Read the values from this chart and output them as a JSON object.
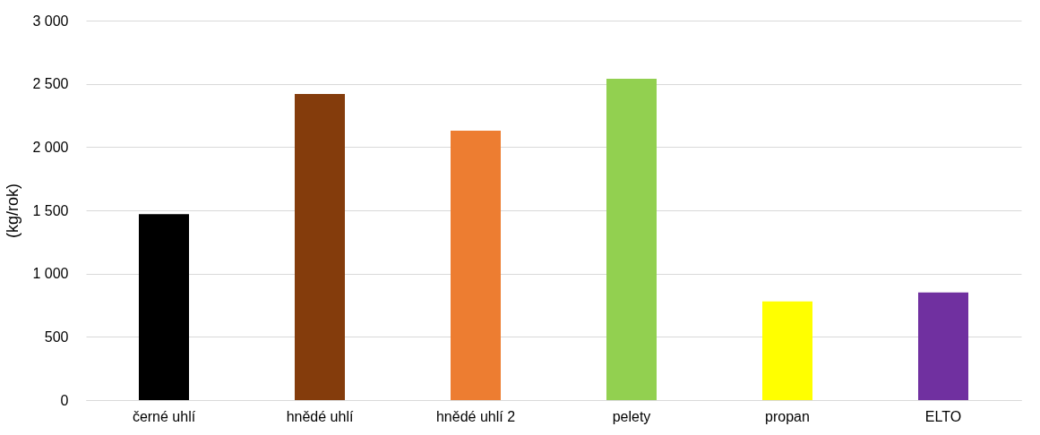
{
  "chart_data": {
    "type": "bar",
    "ylabel": "(kg/rok)",
    "categories": [
      "černé uhlí",
      "hnědé uhlí",
      "hnědé uhlí 2",
      "pelety",
      "propan",
      "ELTO"
    ],
    "values": [
      1470,
      2420,
      2130,
      2540,
      780,
      850
    ],
    "colors": [
      "#000000",
      "#843c0c",
      "#ed7d31",
      "#92d050",
      "#ffff00",
      "#7030a0"
    ],
    "ylim": [
      0,
      3000
    ],
    "yticks": [
      0,
      500,
      {
        "value": 1000,
        "label": "1 000"
      },
      {
        "value": 1500,
        "label": "1 500"
      },
      {
        "value": 2000,
        "label": "2 000"
      },
      {
        "value": 2500,
        "label": "2 500"
      },
      {
        "value": 3000,
        "label": "3 000"
      }
    ],
    "grid": "y"
  }
}
